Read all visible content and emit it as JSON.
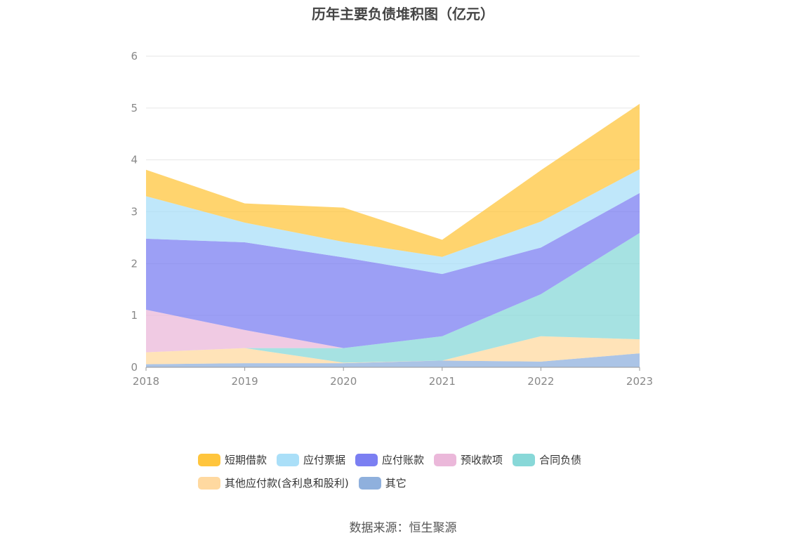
{
  "chart_data": {
    "type": "area",
    "stacked": true,
    "title": "历年主要负债堆积图（亿元）",
    "x": [
      "2018",
      "2019",
      "2020",
      "2021",
      "2022",
      "2023"
    ],
    "ylim": [
      0,
      6
    ],
    "yticks": [
      "0",
      "1",
      "2",
      "3",
      "4",
      "5",
      "6"
    ],
    "grid": true,
    "legend_position": "bottom",
    "series": [
      {
        "name": "其它",
        "color": "#8fb0dd",
        "values": [
          0.06,
          0.08,
          0.08,
          0.13,
          0.11,
          0.27
        ]
      },
      {
        "name": "其他应付款(含利息和股利)",
        "color": "#ffd9a0",
        "values": [
          0.23,
          0.29,
          0.01,
          0.0,
          0.49,
          0.27
        ]
      },
      {
        "name": "合同负债",
        "color": "#88d8d8",
        "values": [
          0.0,
          0.0,
          0.28,
          0.47,
          0.81,
          2.05
        ]
      },
      {
        "name": "预收款项",
        "color": "#ebb8da",
        "values": [
          0.82,
          0.35,
          0.0,
          0.0,
          0.0,
          0.0
        ]
      },
      {
        "name": "应付账款",
        "color": "#7b7ff2",
        "values": [
          1.37,
          1.69,
          1.75,
          1.2,
          0.9,
          0.77
        ]
      },
      {
        "name": "应付票据",
        "color": "#aadff8",
        "values": [
          0.82,
          0.38,
          0.3,
          0.33,
          0.5,
          0.46
        ]
      },
      {
        "name": "短期借款",
        "color": "#ffc53d",
        "values": [
          0.51,
          0.37,
          0.66,
          0.33,
          0.99,
          1.26
        ]
      }
    ]
  },
  "legend": {
    "row1": [
      {
        "label": "短期借款",
        "color": "#ffc53d"
      },
      {
        "label": "应付票据",
        "color": "#aadff8"
      },
      {
        "label": "应付账款",
        "color": "#7b7ff2"
      },
      {
        "label": "预收款项",
        "color": "#ebb8da"
      },
      {
        "label": "合同负债",
        "color": "#88d8d8"
      }
    ],
    "row2": [
      {
        "label": "其他应付款(含利息和股利)",
        "color": "#ffd9a0"
      },
      {
        "label": "其它",
        "color": "#8fb0dd"
      }
    ]
  },
  "source": "数据来源：恒生聚源"
}
